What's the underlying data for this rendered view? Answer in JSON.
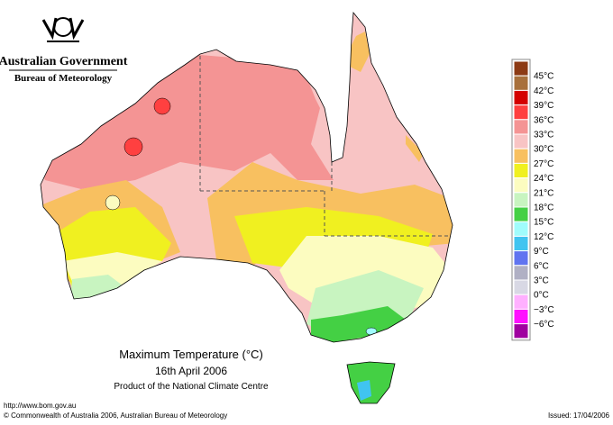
{
  "header": {
    "agency": "Australian Government",
    "bureau": "Bureau of Meteorology"
  },
  "caption": {
    "title": "Maximum Temperature (°C)",
    "date": "16th April 2006",
    "product": "Product of the National Climate Centre"
  },
  "legend": {
    "labels": [
      "45°C",
      "42°C",
      "39°C",
      "36°C",
      "33°C",
      "30°C",
      "27°C",
      "24°C",
      "21°C",
      "18°C",
      "15°C",
      "12°C",
      "9°C",
      "6°C",
      "3°C",
      "0°C",
      "−3°C",
      "−6°C"
    ],
    "colors": [
      "#8c3a14",
      "#a8703c",
      "#d40000",
      "#ff4040",
      "#f49494",
      "#f8c4c4",
      "#f8c060",
      "#f0f020",
      "#fcfcc0",
      "#c8f4c0",
      "#44d044",
      "#a0fcfc",
      "#40c4f0",
      "#6074f0",
      "#b0b0c4",
      "#d8d8e4",
      "#ffb0ff",
      "#ff10ff",
      "#a000a0"
    ]
  },
  "footer": {
    "url": "http://www.bom.gov.au",
    "copyright": "© Commonwealth of Australia 2006, Australian Bureau of Meteorology",
    "issued": "Issued: 17/04/2006"
  }
}
